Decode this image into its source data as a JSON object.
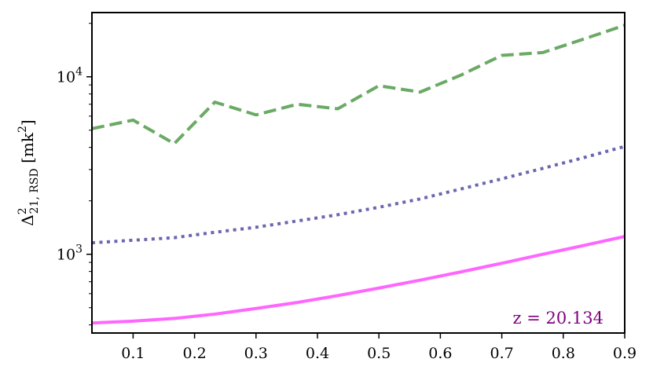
{
  "chart_data": {
    "type": "line",
    "title": "",
    "xlabel": "",
    "ylabel": {
      "symbol": "Δ",
      "superscript": "2",
      "subscript": "21, RSD",
      "unit_open": " [mk",
      "unit_sup": "2",
      "unit_close": "]"
    },
    "xlim": [
      0.033,
      0.9
    ],
    "ylim": [
      360,
      23000
    ],
    "yscale": "log",
    "grid": false,
    "x_ticks": [
      {
        "value": 0.1,
        "label": "0.1"
      },
      {
        "value": 0.2,
        "label": "0.2"
      },
      {
        "value": 0.3,
        "label": "0.3"
      },
      {
        "value": 0.4,
        "label": "0.4"
      },
      {
        "value": 0.5,
        "label": "0.5"
      },
      {
        "value": 0.6,
        "label": "0.6"
      },
      {
        "value": 0.7,
        "label": "0.7"
      },
      {
        "value": 0.8,
        "label": "0.8"
      },
      {
        "value": 0.9,
        "label": "0.9"
      }
    ],
    "y_ticks": [
      {
        "value": 1000,
        "base": "10",
        "exp": "3"
      },
      {
        "value": 10000,
        "base": "10",
        "exp": "4"
      }
    ],
    "annotation": {
      "text": "z = 20.134",
      "color": "#800080"
    },
    "series": [
      {
        "style": "dashed",
        "color": "#6aaa64",
        "x": [
          0.033,
          0.1,
          0.167,
          0.233,
          0.3,
          0.367,
          0.433,
          0.5,
          0.567,
          0.633,
          0.7,
          0.767,
          0.833,
          0.9
        ],
        "y": [
          5100,
          5700,
          4200,
          7200,
          6100,
          7000,
          6600,
          8900,
          8200,
          10200,
          13200,
          13700,
          16300,
          19500
        ]
      },
      {
        "style": "dotted",
        "color": "#6a66b0",
        "x": [
          0.033,
          0.1,
          0.167,
          0.233,
          0.3,
          0.367,
          0.433,
          0.5,
          0.567,
          0.633,
          0.7,
          0.767,
          0.833,
          0.9
        ],
        "y": [
          1160,
          1200,
          1240,
          1330,
          1420,
          1540,
          1670,
          1840,
          2050,
          2330,
          2660,
          3050,
          3500,
          4050
        ]
      },
      {
        "style": "solid",
        "color": "#ff66ff",
        "x": [
          0.033,
          0.1,
          0.167,
          0.233,
          0.3,
          0.367,
          0.433,
          0.5,
          0.567,
          0.633,
          0.7,
          0.767,
          0.833,
          0.9
        ],
        "y": [
          410,
          420,
          435,
          460,
          495,
          535,
          585,
          645,
          715,
          795,
          890,
          1000,
          1120,
          1260
        ]
      }
    ]
  }
}
